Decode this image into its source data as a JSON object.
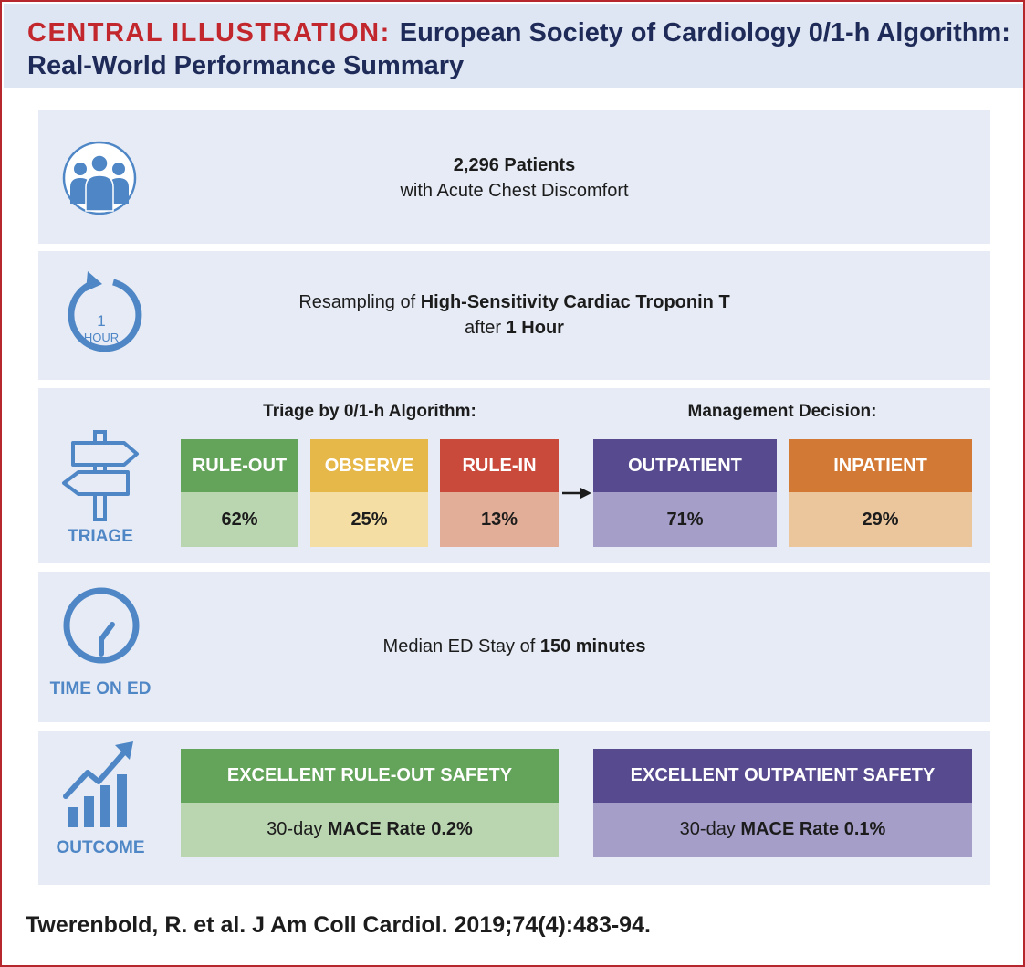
{
  "header": {
    "label": "CENTRAL ILLUSTRATION:",
    "title_line1": "European Society of Cardiology 0/1-h Algorithm:",
    "title_line2": "Real-World Performance Summary"
  },
  "patients": {
    "count": "2,296 Patients",
    "description": "with Acute Chest Discomfort",
    "icon": "people-group-icon"
  },
  "resampling": {
    "icon": "one-hour-cycle-icon",
    "icon_number": "1",
    "icon_unit": "HOUR",
    "prefix": "Resampling of",
    "assay": "High-Sensitivity Cardiac Troponin T",
    "after": "after",
    "interval": "1 Hour"
  },
  "triage": {
    "icon": "signpost-icon",
    "icon_label": "TRIAGE",
    "algorithm_heading": "Triage by 0/1-h Algorithm:",
    "decision_heading": "Management Decision:",
    "categories": [
      {
        "label": "RULE-OUT",
        "value": "62%",
        "fraction": 0.62,
        "header_color": "#63a35a",
        "value_color": "#bad6b0"
      },
      {
        "label": "OBSERVE",
        "value": "25%",
        "fraction": 0.25,
        "header_color": "#e6b84a",
        "value_color": "#f4dea4"
      },
      {
        "label": "RULE-IN",
        "value": "13%",
        "fraction": 0.13,
        "header_color": "#c94a3a",
        "value_color": "#e2ae97"
      }
    ],
    "decisions": [
      {
        "label": "OUTPATIENT",
        "value": "71%",
        "fraction": 0.71,
        "header_color": "#574a8f",
        "value_color": "#a59ec8"
      },
      {
        "label": "INPATIENT",
        "value": "29%",
        "fraction": 0.29,
        "header_color": "#d27a35",
        "value_color": "#ebc59b"
      }
    ]
  },
  "time": {
    "icon": "clock-icon",
    "icon_label": "TIME ON ED",
    "prefix": "Median ED Stay of",
    "value": "150 minutes"
  },
  "outcome": {
    "icon": "rising-bar-chart-icon",
    "icon_label": "OUTCOME",
    "items": [
      {
        "title": "EXCELLENT RULE-OUT SAFETY",
        "prefix": "30-day",
        "metric": "MACE Rate 0.2%",
        "header_color": "#63a35a",
        "value_color": "#bad6b0"
      },
      {
        "title": "EXCELLENT OUTPATIENT SAFETY",
        "prefix": "30-day",
        "metric": "MACE Rate 0.1%",
        "header_color": "#574a8f",
        "value_color": "#a59ec8"
      }
    ]
  },
  "citation": "Twerenbold, R. et al. J Am Coll Cardiol. 2019;74(4):483-94.",
  "colors": {
    "accent_red": "#c2272d",
    "navy": "#1e2a57",
    "icon_blue": "#4e86c6",
    "panel_bg": "#e6ebf5",
    "header_bg": "#dfe6f3"
  }
}
